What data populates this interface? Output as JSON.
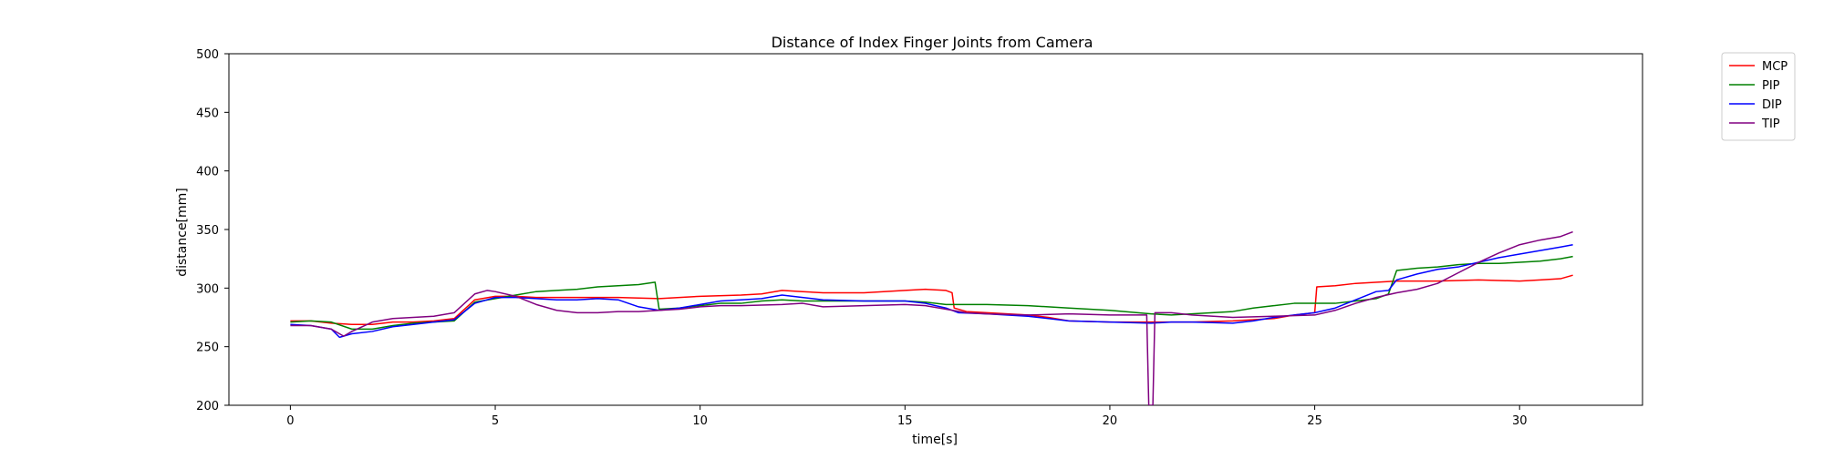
{
  "chart_data": {
    "type": "line",
    "title": "Distance of Index Finger Joints from Camera",
    "xlabel": "time[s]",
    "ylabel": "distance[mm]",
    "xlim": [
      -1.5,
      33
    ],
    "ylim": [
      200,
      500
    ],
    "xticks": [
      0,
      5,
      10,
      15,
      20,
      25,
      30
    ],
    "yticks": [
      200,
      250,
      300,
      350,
      400,
      450,
      500
    ],
    "grid": false,
    "legend_position": "outside-top-right",
    "series": [
      {
        "name": "MCP",
        "color": "#ff0000",
        "points": [
          [
            0,
            272
          ],
          [
            0.5,
            272
          ],
          [
            1,
            270
          ],
          [
            1.5,
            269
          ],
          [
            2,
            269
          ],
          [
            2.5,
            271
          ],
          [
            3,
            271
          ],
          [
            3.5,
            272
          ],
          [
            4,
            274
          ],
          [
            4.5,
            290
          ],
          [
            5,
            293
          ],
          [
            5.5,
            293
          ],
          [
            6,
            292
          ],
          [
            7,
            292
          ],
          [
            8,
            292
          ],
          [
            9,
            291
          ],
          [
            10,
            293
          ],
          [
            11,
            294
          ],
          [
            11.5,
            295
          ],
          [
            12,
            298
          ],
          [
            12.5,
            297
          ],
          [
            13,
            296
          ],
          [
            14,
            296
          ],
          [
            15,
            298
          ],
          [
            15.5,
            299
          ],
          [
            16,
            298
          ],
          [
            16.15,
            296
          ],
          [
            16.2,
            283
          ],
          [
            16.5,
            280
          ],
          [
            17,
            279
          ],
          [
            18,
            277
          ],
          [
            18.5,
            275
          ],
          [
            19,
            272
          ],
          [
            20,
            271
          ],
          [
            21,
            271
          ],
          [
            22,
            271
          ],
          [
            23,
            272
          ],
          [
            24,
            274
          ],
          [
            24.5,
            277
          ],
          [
            25,
            279
          ],
          [
            25.05,
            301
          ],
          [
            25.5,
            302
          ],
          [
            26,
            304
          ],
          [
            27,
            306
          ],
          [
            28,
            306
          ],
          [
            29,
            307
          ],
          [
            30,
            306
          ],
          [
            30.5,
            307
          ],
          [
            31,
            308
          ],
          [
            31.3,
            311
          ]
        ]
      },
      {
        "name": "PIP",
        "color": "#008000",
        "points": [
          [
            0,
            271
          ],
          [
            0.5,
            272
          ],
          [
            1,
            271
          ],
          [
            1.5,
            265
          ],
          [
            2,
            265
          ],
          [
            2.5,
            268
          ],
          [
            3,
            270
          ],
          [
            3.5,
            271
          ],
          [
            4,
            272
          ],
          [
            4.5,
            288
          ],
          [
            5,
            291
          ],
          [
            5.5,
            294
          ],
          [
            6,
            297
          ],
          [
            6.5,
            298
          ],
          [
            7,
            299
          ],
          [
            7.5,
            301
          ],
          [
            8,
            302
          ],
          [
            8.5,
            303
          ],
          [
            8.9,
            305
          ],
          [
            9,
            282
          ],
          [
            9.5,
            283
          ],
          [
            10,
            285
          ],
          [
            10.5,
            287
          ],
          [
            11,
            287
          ],
          [
            11.5,
            289
          ],
          [
            12,
            290
          ],
          [
            12.5,
            289
          ],
          [
            13,
            289
          ],
          [
            14,
            289
          ],
          [
            15,
            289
          ],
          [
            15.5,
            288
          ],
          [
            16,
            286
          ],
          [
            16.5,
            286
          ],
          [
            17,
            286
          ],
          [
            18,
            285
          ],
          [
            19,
            283
          ],
          [
            20,
            281
          ],
          [
            21,
            278
          ],
          [
            21.5,
            277
          ],
          [
            22,
            278
          ],
          [
            23,
            280
          ],
          [
            23.5,
            283
          ],
          [
            24,
            285
          ],
          [
            24.5,
            287
          ],
          [
            25,
            287
          ],
          [
            25.5,
            287
          ],
          [
            26,
            289
          ],
          [
            26.5,
            291
          ],
          [
            26.8,
            295
          ],
          [
            27,
            315
          ],
          [
            27.5,
            317
          ],
          [
            28,
            318
          ],
          [
            28.5,
            320
          ],
          [
            29,
            321
          ],
          [
            29.5,
            321
          ],
          [
            30,
            322
          ],
          [
            30.5,
            323
          ],
          [
            31,
            325
          ],
          [
            31.3,
            327
          ]
        ]
      },
      {
        "name": "DIP",
        "color": "#0000ff",
        "points": [
          [
            0,
            269
          ],
          [
            0.5,
            268
          ],
          [
            1,
            265
          ],
          [
            1.2,
            258
          ],
          [
            1.5,
            261
          ],
          [
            2,
            263
          ],
          [
            2.5,
            267
          ],
          [
            3,
            269
          ],
          [
            3.5,
            271
          ],
          [
            4,
            273
          ],
          [
            4.5,
            287
          ],
          [
            5,
            292
          ],
          [
            5.5,
            292
          ],
          [
            6,
            291
          ],
          [
            6.5,
            290
          ],
          [
            7,
            290
          ],
          [
            7.5,
            291
          ],
          [
            8,
            290
          ],
          [
            8.5,
            284
          ],
          [
            9,
            281
          ],
          [
            9.5,
            283
          ],
          [
            10,
            286
          ],
          [
            10.5,
            289
          ],
          [
            11,
            290
          ],
          [
            11.5,
            291
          ],
          [
            12,
            294
          ],
          [
            12.5,
            292
          ],
          [
            13,
            290
          ],
          [
            14,
            289
          ],
          [
            15,
            289
          ],
          [
            15.5,
            287
          ],
          [
            16,
            283
          ],
          [
            16.3,
            279
          ],
          [
            17,
            278
          ],
          [
            18,
            276
          ],
          [
            19,
            272
          ],
          [
            20,
            271
          ],
          [
            21,
            270
          ],
          [
            21.5,
            271
          ],
          [
            22,
            271
          ],
          [
            23,
            270
          ],
          [
            23.5,
            272
          ],
          [
            24,
            275
          ],
          [
            24.5,
            277
          ],
          [
            25,
            279
          ],
          [
            25.5,
            283
          ],
          [
            26,
            290
          ],
          [
            26.5,
            297
          ],
          [
            26.8,
            298
          ],
          [
            27,
            307
          ],
          [
            27.5,
            312
          ],
          [
            28,
            316
          ],
          [
            28.5,
            318
          ],
          [
            29,
            322
          ],
          [
            29.5,
            326
          ],
          [
            30,
            329
          ],
          [
            30.5,
            332
          ],
          [
            31,
            335
          ],
          [
            31.3,
            337
          ]
        ]
      },
      {
        "name": "TIP",
        "color": "#800080",
        "points": [
          [
            0,
            268
          ],
          [
            0.5,
            268
          ],
          [
            1,
            265
          ],
          [
            1.3,
            259
          ],
          [
            1.5,
            263
          ],
          [
            2,
            271
          ],
          [
            2.5,
            274
          ],
          [
            3,
            275
          ],
          [
            3.5,
            276
          ],
          [
            4,
            279
          ],
          [
            4.5,
            295
          ],
          [
            4.8,
            298
          ],
          [
            5,
            297
          ],
          [
            5.5,
            293
          ],
          [
            6,
            286
          ],
          [
            6.5,
            281
          ],
          [
            7,
            279
          ],
          [
            7.5,
            279
          ],
          [
            8,
            280
          ],
          [
            8.5,
            280
          ],
          [
            9,
            281
          ],
          [
            9.5,
            282
          ],
          [
            10,
            284
          ],
          [
            10.5,
            285
          ],
          [
            11,
            285
          ],
          [
            12,
            286
          ],
          [
            12.5,
            287
          ],
          [
            13,
            284
          ],
          [
            14,
            285
          ],
          [
            15,
            286
          ],
          [
            15.5,
            285
          ],
          [
            16,
            282
          ],
          [
            16.5,
            279
          ],
          [
            17,
            278
          ],
          [
            18,
            277
          ],
          [
            19,
            278
          ],
          [
            20,
            277
          ],
          [
            20.9,
            277
          ],
          [
            20.95,
            200
          ],
          [
            21.05,
            200
          ],
          [
            21.1,
            279
          ],
          [
            21.5,
            279
          ],
          [
            22,
            277
          ],
          [
            23,
            275
          ],
          [
            24,
            276
          ],
          [
            25,
            277
          ],
          [
            25.5,
            281
          ],
          [
            26,
            287
          ],
          [
            26.5,
            292
          ],
          [
            27,
            296
          ],
          [
            27.5,
            299
          ],
          [
            28,
            304
          ],
          [
            28.5,
            313
          ],
          [
            29,
            322
          ],
          [
            29.5,
            330
          ],
          [
            30,
            337
          ],
          [
            30.5,
            341
          ],
          [
            31,
            344
          ],
          [
            31.3,
            348
          ]
        ]
      }
    ]
  }
}
